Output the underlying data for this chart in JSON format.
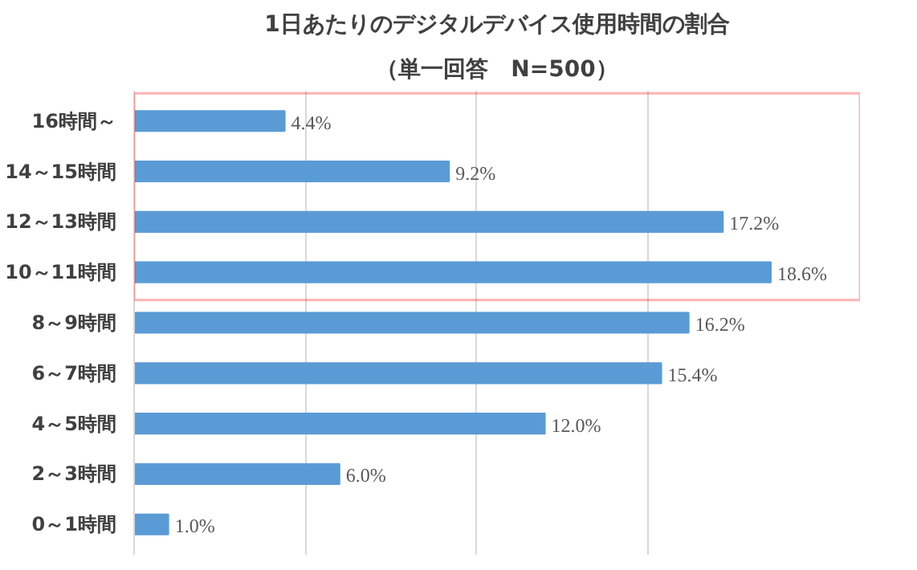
{
  "chart_data": {
    "type": "bar",
    "orientation": "horizontal",
    "title": "1日あたりのデジタルデバイス使用時間の割合",
    "subtitle": "（単一回答　N=500）",
    "categories": [
      "16時間～",
      "14～15時間",
      "12～13時間",
      "10～11時間",
      "8～9時間",
      "6～7時間",
      "4～5時間",
      "2～3時間",
      "0～1時間"
    ],
    "values": [
      4.4,
      9.2,
      17.2,
      18.6,
      16.2,
      15.4,
      12.0,
      6.0,
      1.0
    ],
    "value_labels": [
      "4.4%",
      "9.2%",
      "17.2%",
      "18.6%",
      "16.2%",
      "15.4%",
      "12.0%",
      "6.0%",
      "1.0%"
    ],
    "color": "#5b9bd5",
    "xticks": [
      {
        "value": 0,
        "label": null
      },
      {
        "value": 5,
        "label": null
      },
      {
        "value": 10,
        "label": null
      },
      {
        "value": 15,
        "label": null
      }
    ],
    "tick_labels": "y",
    "grid": "x"
  }
}
